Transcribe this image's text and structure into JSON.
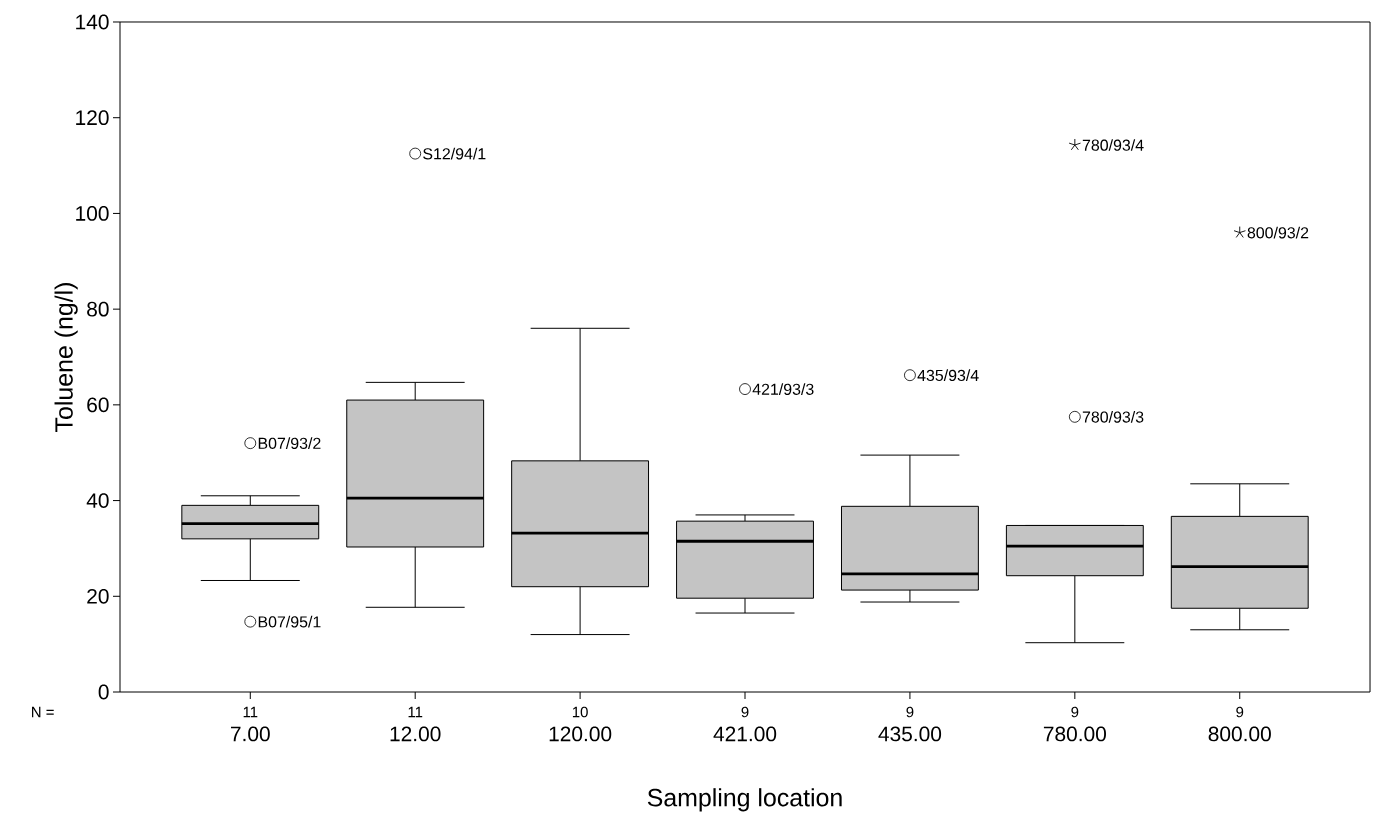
{
  "chart_data": {
    "type": "box",
    "xlabel": "Sampling location",
    "ylabel": "Toluene (ng/l)",
    "categories": [
      "7.00",
      "12.00",
      "120.00",
      "421.00",
      "435.00",
      "780.00",
      "800.00"
    ],
    "color": "#c4c4c4",
    "boxes": [
      {
        "low": 23.3,
        "q1": 32,
        "median": 35.2,
        "q3": 39,
        "high": 41,
        "outliers": [
          52,
          14.7
        ]
      },
      {
        "low": 17.7,
        "q1": 30.3,
        "median": 40.5,
        "q3": 61,
        "high": 64.7,
        "outliers": [
          112.5
        ]
      },
      {
        "low": 12,
        "q1": 22,
        "median": 33.2,
        "q3": 48.3,
        "high": 76
      },
      {
        "low": 16.5,
        "q1": 19.6,
        "median": 31.5,
        "q3": 35.7,
        "high": 37,
        "outliers": [
          63.3
        ]
      },
      {
        "low": 18.8,
        "q1": 21.3,
        "median": 24.7,
        "q3": 38.8,
        "high": 49.5,
        "outliers": [
          66.2
        ]
      },
      {
        "low": 10.3,
        "q1": 24.3,
        "median": 30.5,
        "q3": 34.8,
        "high": 34.8,
        "outliers": [
          57.5
        ]
      },
      {
        "low": 13,
        "q1": 17.5,
        "median": 26.2,
        "q3": 36.7,
        "high": 43.5
      }
    ],
    "series": [
      {
        "type": "scatter",
        "marker": "cross",
        "color": "#000000",
        "x": [
          "780.00",
          "800.00"
        ],
        "values": [
          114.3,
          96
        ]
      }
    ],
    "ylim": [
      0,
      140
    ],
    "yticks": [
      0,
      20,
      40,
      60,
      80,
      100,
      120,
      140
    ],
    "annotations": [
      "B07/93/2",
      "B07/95/1",
      "S12/94/1",
      "421/93/3",
      "435/93/4",
      "780/93/3",
      "780/93/4",
      "800/93/2",
      "N =",
      "11",
      "11",
      "10",
      "9",
      "9",
      "9",
      "9"
    ]
  }
}
